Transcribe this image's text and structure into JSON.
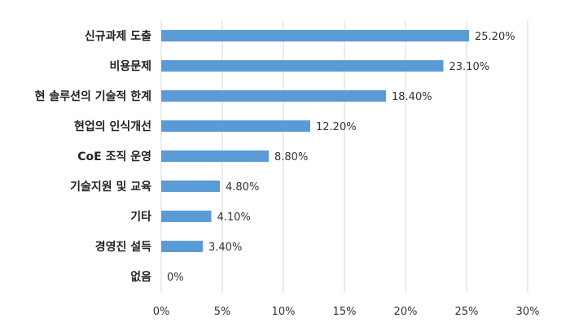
{
  "chart_data": {
    "type": "bar",
    "orientation": "horizontal",
    "categories": [
      "신규과제 도출",
      "비용문제",
      "현 솔루션의 기술적 한계",
      "현업의 인식개선",
      "CoE 조직 운영",
      "기술지원 및 교육",
      "기타",
      "경영진 설득",
      "없음"
    ],
    "values": [
      25.2,
      23.1,
      18.4,
      12.2,
      8.8,
      4.8,
      4.1,
      3.4,
      0
    ],
    "data_labels": [
      "25.20%",
      "23.10%",
      "18.40%",
      "12.20%",
      "8.80%",
      "4.80%",
      "4.10%",
      "3.40%",
      "0%"
    ],
    "x_ticks": [
      "0%",
      "5%",
      "10%",
      "15%",
      "20%",
      "25%",
      "30%"
    ],
    "xlim": [
      0,
      30
    ],
    "grid": true,
    "legend": "none",
    "bar_color": "#5b9bd5",
    "title": "",
    "xlabel": "",
    "ylabel": ""
  }
}
